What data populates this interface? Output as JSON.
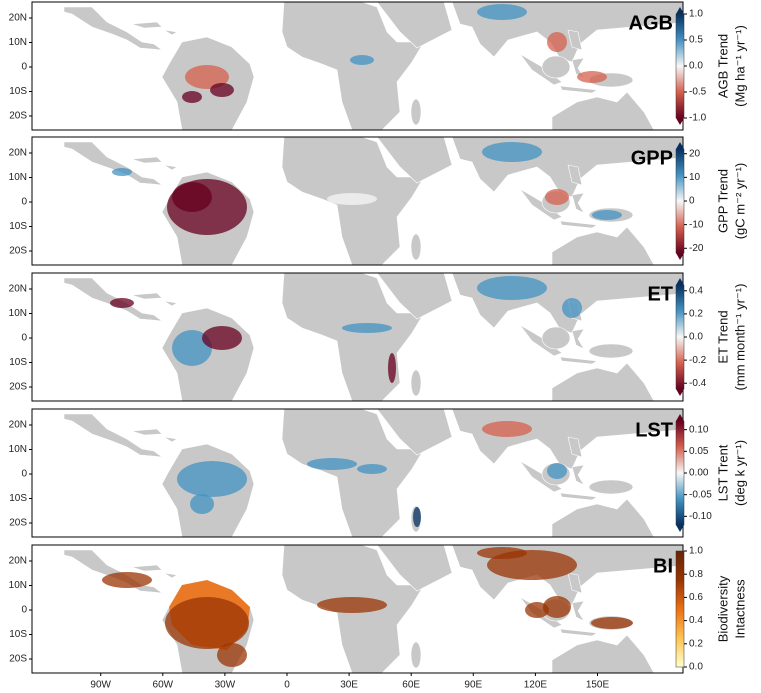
{
  "panels": [
    {
      "label": "AGB",
      "colorbar": {
        "title": [
          "AGB Trend",
          "(Mg ha⁻¹ yr⁻¹)"
        ],
        "clim": [
          -1,
          1
        ],
        "extend": true,
        "ticks": [
          {
            "value": 1,
            "label": "1.0"
          },
          0.5,
          {
            "value": 0,
            "label": "0.0"
          },
          -0.5,
          {
            "value": -1,
            "label": "-1.0"
          }
        ],
        "colors": [
          "#67001f",
          "#d6604d",
          "#f7f7f7",
          "#4393c3",
          "#053061"
        ]
      }
    },
    {
      "label": "GPP",
      "colorbar": {
        "title": [
          "GPP Trend",
          "(gC m⁻² yr⁻¹)"
        ],
        "clim": [
          -22,
          22
        ],
        "extend": true,
        "ticks": [
          20,
          10,
          0,
          -10,
          -20
        ],
        "colors": [
          "#67001f",
          "#d6604d",
          "#f7f7f7",
          "#4393c3",
          "#053061"
        ]
      }
    },
    {
      "label": "ET",
      "colorbar": {
        "title": [
          "ET Trend",
          "(mm month⁻¹ yr⁻¹)"
        ],
        "clim": [
          -0.45,
          0.45
        ],
        "extend": true,
        "ticks": [
          0.4,
          0.2,
          {
            "value": 0,
            "label": "0.0"
          },
          -0.2,
          -0.4
        ],
        "colors": [
          "#67001f",
          "#d6604d",
          "#f7f7f7",
          "#4393c3",
          "#053061"
        ]
      }
    },
    {
      "label": "LST",
      "colorbar": {
        "title": [
          "LST Trent",
          "(deg k yr⁻¹)"
        ],
        "clim": [
          -0.12,
          0.12
        ],
        "extend": true,
        "ticks": [
          {
            "value": 0.1,
            "label": "0.10"
          },
          0.05,
          {
            "value": 0,
            "label": "0.00"
          },
          -0.05,
          {
            "value": -0.1,
            "label": "-0.10"
          }
        ],
        "colors": [
          "#053061",
          "#4393c3",
          "#f7f7f7",
          "#d6604d",
          "#67001f"
        ]
      }
    },
    {
      "label": "BI",
      "colorbar": {
        "title": [
          "Biodiversity",
          "Intactness"
        ],
        "clim": [
          0,
          1
        ],
        "extend": false,
        "ticks": [
          {
            "value": 1,
            "label": "1.0"
          },
          0.8,
          0.6,
          0.4,
          0.2,
          {
            "value": 0,
            "label": "0.0"
          }
        ],
        "colors": [
          "#ffffcc",
          "#fec44f",
          "#ec7014",
          "#993404",
          "#662506"
        ]
      }
    }
  ],
  "lat_ticks": [
    {
      "value": 20,
      "label": "20N"
    },
    {
      "value": 10,
      "label": "10N"
    },
    0,
    {
      "value": -10,
      "label": "10S"
    },
    {
      "value": -20,
      "label": "20S"
    }
  ],
  "lon_ticks": [
    {
      "value": -90,
      "label": "90W"
    },
    {
      "value": -60,
      "label": "60W"
    },
    {
      "value": -30,
      "label": "30W"
    },
    0,
    {
      "value": 30,
      "label": "30E"
    },
    {
      "value": 60,
      "label": "60E"
    },
    {
      "value": 90,
      "label": "90E"
    },
    {
      "value": 120,
      "label": "120E"
    },
    {
      "value": 150,
      "label": "150E"
    }
  ]
}
